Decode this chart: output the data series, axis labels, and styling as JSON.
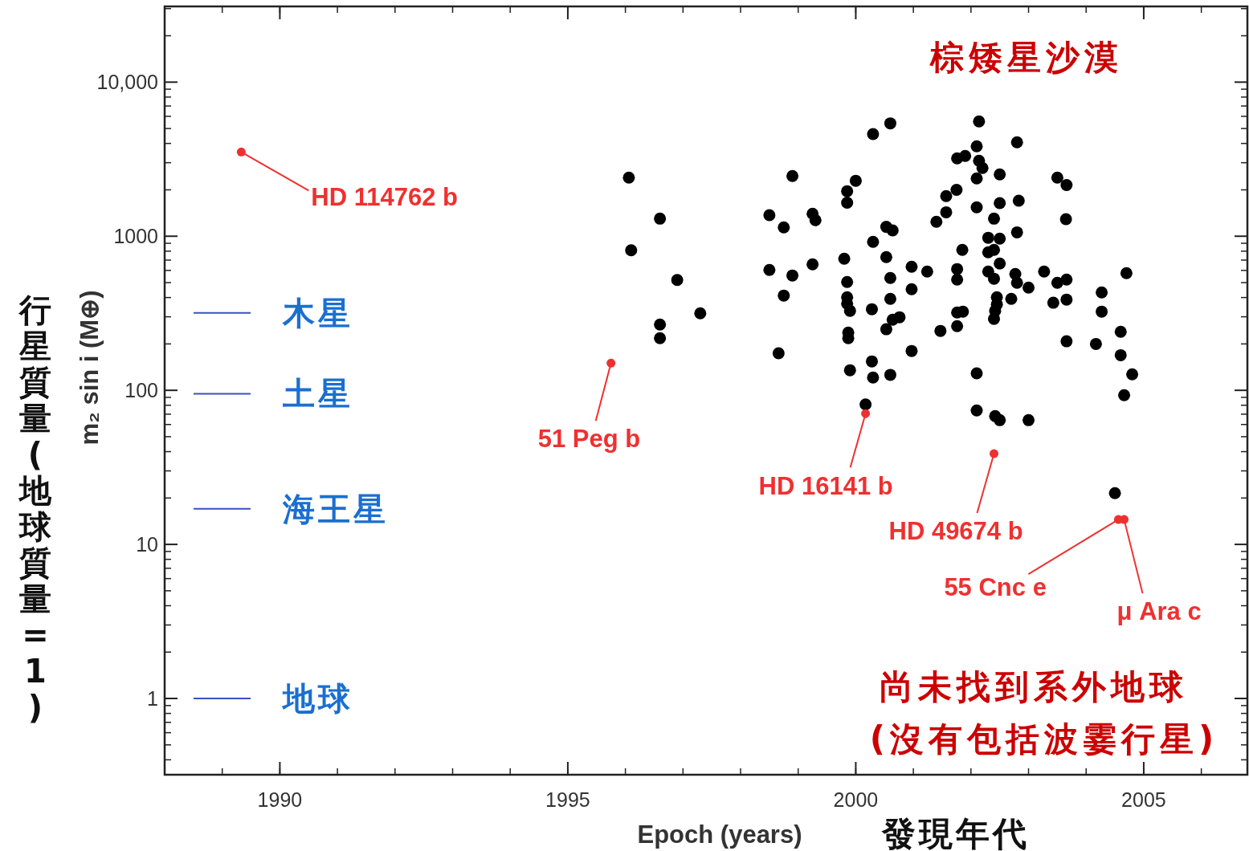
{
  "chart_data": {
    "type": "scatter",
    "xlabel": "Epoch (years)",
    "ylabel": "m₂ sin i (M⊕)",
    "log": "y",
    "xlim": [
      1988,
      2006.8
    ],
    "ylim": [
      0.32,
      31000
    ],
    "xticks": [
      1990,
      1995,
      2000,
      2005
    ],
    "yticks": [
      1,
      10,
      100,
      1000,
      {
        "value": 10000,
        "label": "10,000"
      }
    ],
    "marker": "circle",
    "series": [
      {
        "color": "#000000",
        "x": [
          1996.06,
          1996.6,
          1996.1,
          1996.9,
          1997.3,
          1996.6,
          1996.6,
          1998.9,
          2000.0,
          1999.85,
          1999.85,
          1998.5,
          1998.75,
          1999.25,
          1999.3,
          2000.3,
          2000.3,
          1999.8,
          1998.5,
          1998.9,
          1999.25,
          1998.75,
          1999.85,
          1999.85,
          1999.85,
          1999.9,
          2000.28,
          1999.87,
          1999.87,
          1998.66,
          2000.28,
          1999.9,
          2000.3,
          2000.17,
          2000.6,
          2002.14,
          2002.8,
          2002.1,
          2001.76,
          2001.9,
          2002.14,
          2002.2,
          2002.1,
          2002.5,
          2003.5,
          2003.66,
          2001.75,
          2001.57,
          2002.83,
          2002.1,
          2002.5,
          2001.57,
          2001.4,
          2003.65,
          2002.4,
          2000.53,
          2000.64,
          2002.8,
          2002.3,
          2002.5,
          2000.53,
          2001.85,
          2002.3,
          2002.4,
          2002.5,
          2000.97,
          2001.24,
          2001.76,
          2001.76,
          2002.3,
          2002.4,
          2002.77,
          2002.8,
          2003.0,
          2003.27,
          2003.5,
          2003.66,
          2004.7,
          2000.6,
          2000.97,
          2000.6,
          2002.7,
          2002.45,
          2002.45,
          2002.42,
          2002.4,
          2003.43,
          2003.66,
          2004.27,
          2004.27,
          2001.76,
          2001.86,
          2001.76,
          2000.76,
          2000.64,
          2000.53,
          2001.47,
          2000.97,
          2003.66,
          2004.17,
          2004.6,
          2004.6,
          2004.8,
          2004.66,
          2000.6,
          2002.1,
          2002.1,
          2002.42,
          2002.5,
          2003.0,
          2004.5
        ],
        "values": [
          2400,
          1300,
          810,
          520,
          316,
          267,
          218,
          2460,
          2290,
          1960,
          1650,
          1370,
          1140,
          1400,
          1270,
          4600,
          920,
          715,
          604,
          556,
          657,
          412,
          505,
          402,
          365,
          328,
          336,
          237,
          218,
          174,
          154,
          135,
          121,
          81,
          5400,
          5560,
          4070,
          3830,
          3200,
          3320,
          3090,
          2770,
          2370,
          2520,
          2400,
          2150,
          2000,
          1820,
          1700,
          1540,
          1640,
          1430,
          1240,
          1290,
          1300,
          1150,
          1090,
          1060,
          977,
          965,
          732,
          816,
          787,
          816,
          665,
          634,
          590,
          612,
          523,
          590,
          530,
          569,
          499,
          464,
          590,
          499,
          523,
          576,
          536,
          453,
          392,
          392,
          402,
          361,
          328,
          291,
          370,
          388,
          432,
          324,
          320,
          324,
          261,
          298,
          287,
          249,
          243,
          180,
          208,
          200,
          240,
          169,
          127,
          93,
          126,
          129,
          74,
          68,
          64,
          64,
          21.5
        ]
      },
      {
        "color": "#f03030",
        "x": [
          1989.33,
          1995.75,
          2000.17,
          2002.4,
          2004.56,
          2004.66
        ],
        "values": [
          3520,
          150,
          70.6,
          38.8,
          14.5,
          14.5
        ]
      }
    ],
    "ref_lines": [
      {
        "axis": "y",
        "value": 318,
        "label": "木星",
        "color": "#3a4fc0"
      },
      {
        "axis": "y",
        "value": 95,
        "label": "土星",
        "color": "#3a4fc0"
      },
      {
        "axis": "y",
        "value": 17,
        "label": "海王星",
        "color": "#3a4fc0"
      },
      {
        "axis": "y",
        "value": 1,
        "label": "地球",
        "color": "#3a4fc0"
      }
    ],
    "annotations": [
      {
        "text": "HD 114762 b",
        "x": 1989.33,
        "y": 3520
      },
      {
        "text": "51 Peg b",
        "x": 1995.75,
        "y": 150
      },
      {
        "text": "HD 16141 b",
        "x": 2000.17,
        "y": 70.6
      },
      {
        "text": "HD 49674 b",
        "x": 2002.4,
        "y": 38.8
      },
      {
        "text": "55 Cnc e",
        "x": 2004.56,
        "y": 14.5
      },
      {
        "text": "μ Ara c",
        "x": 2004.66,
        "y": 14.5
      },
      "棕矮星沙漠",
      "尚未找到系外地球",
      "(沒有包括波霎行星)",
      "發現年代",
      "行星質量(地球質量=1)"
    ]
  }
}
